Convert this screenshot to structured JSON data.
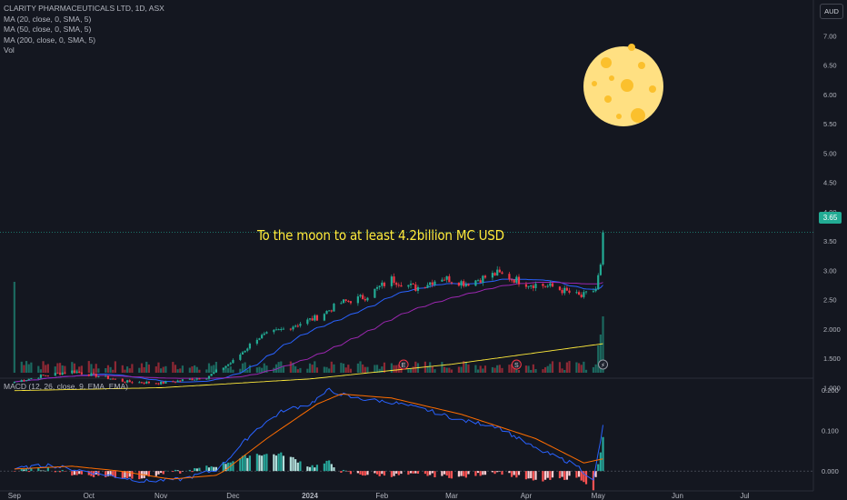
{
  "legend": {
    "symbol": "CLARITY PHARMACEUTICALS LTD, 1D, ASX",
    "ma20": "MA (20, close, 0, SMA, 5)",
    "ma50": "MA (50, close, 0, SMA, 5)",
    "ma200": "MA (200, close, 0, SMA, 5)",
    "vol": "Vol"
  },
  "currency_label": "AUD",
  "annotation": "To the moon to at least 4.2billion MC USD",
  "price_tag": "3.65",
  "macd_legend": "MACD (12, 26, close, 9, EMA, EMA)",
  "colors": {
    "up": "#22ab94",
    "down": "#f23645",
    "ma20": "#2962ff",
    "ma50": "#9c27b0",
    "ma200": "#ffeb3b",
    "macd": "#2962ff",
    "signal": "#ff6d00",
    "moon": "#ffe082"
  },
  "chart_data": [
    {
      "type": "candlestick",
      "title": "CLARITY PHARMACEUTICALS LTD, 1D, ASX",
      "x_tick_labels": [
        "Sep",
        "Oct",
        "Nov",
        "Dec",
        "2024",
        "Feb",
        "Mar",
        "Apr",
        "May",
        "Jun",
        "Jul"
      ],
      "y_tick_labels": [
        "7.00",
        "6.50",
        "6.00",
        "5.50",
        "5.00",
        "4.50",
        "4.00",
        "3.50",
        "3.00",
        "2.50",
        "2.000",
        "1.500",
        "1.000"
      ],
      "ylim": [
        0.93,
        7.1
      ],
      "last_price": 3.65,
      "close_anchors": [
        {
          "date": "2023-09-01",
          "close": 1.1
        },
        {
          "date": "2023-09-12",
          "close": 1.2
        },
        {
          "date": "2023-09-25",
          "close": 1.28
        },
        {
          "date": "2023-10-06",
          "close": 1.2
        },
        {
          "date": "2023-10-18",
          "close": 1.1
        },
        {
          "date": "2023-11-01",
          "close": 1.08
        },
        {
          "date": "2023-11-20",
          "close": 1.18
        },
        {
          "date": "2023-12-01",
          "close": 1.45
        },
        {
          "date": "2023-12-11",
          "close": 1.85
        },
        {
          "date": "2023-12-22",
          "close": 2.0
        },
        {
          "date": "2024-01-05",
          "close": 2.2
        },
        {
          "date": "2024-01-15",
          "close": 2.45
        },
        {
          "date": "2024-01-25",
          "close": 2.55
        },
        {
          "date": "2024-02-05",
          "close": 2.85
        },
        {
          "date": "2024-02-15",
          "close": 2.7
        },
        {
          "date": "2024-02-26",
          "close": 2.88
        },
        {
          "date": "2024-03-07",
          "close": 2.78
        },
        {
          "date": "2024-03-20",
          "close": 2.95
        },
        {
          "date": "2024-04-01",
          "close": 2.78
        },
        {
          "date": "2024-04-12",
          "close": 2.72
        },
        {
          "date": "2024-04-24",
          "close": 2.55
        },
        {
          "date": "2024-04-30",
          "close": 2.68
        },
        {
          "date": "2024-05-02",
          "close": 3.1
        },
        {
          "date": "2024-05-03",
          "close": 3.65
        }
      ],
      "ma200_anchors": [
        {
          "date": "2023-09-01",
          "value": 0.95
        },
        {
          "date": "2023-11-01",
          "value": 1.0
        },
        {
          "date": "2024-01-02",
          "value": 1.15
        },
        {
          "date": "2024-03-01",
          "value": 1.4
        },
        {
          "date": "2024-05-03",
          "value": 1.75
        }
      ],
      "volume": {
        "peak_date": "2023-09-01",
        "last_bars_relative": [
          0.35,
          0.55,
          1.0
        ]
      },
      "markers": [
        {
          "date": "2024-02-10",
          "label": "E"
        },
        {
          "date": "2024-03-28",
          "label": "S"
        },
        {
          "date": "2024-05-03",
          "label": "⚡"
        }
      ]
    },
    {
      "type": "macd",
      "title": "MACD (12, 26, close, 9, EMA, EMA)",
      "y_tick_labels": [
        "0.200",
        "0.100",
        "0.000"
      ],
      "ylim": [
        -0.04,
        0.22
      ],
      "macd_anchors": [
        {
          "date": "2023-09-01",
          "value": 0.005
        },
        {
          "date": "2023-09-15",
          "value": 0.015
        },
        {
          "date": "2023-10-05",
          "value": -0.005
        },
        {
          "date": "2023-10-25",
          "value": -0.025
        },
        {
          "date": "2023-11-10",
          "value": -0.02
        },
        {
          "date": "2023-11-25",
          "value": 0.005
        },
        {
          "date": "2023-12-10",
          "value": 0.1
        },
        {
          "date": "2023-12-22",
          "value": 0.15
        },
        {
          "date": "2024-01-02",
          "value": 0.165
        },
        {
          "date": "2024-01-10",
          "value": 0.2
        },
        {
          "date": "2024-01-20",
          "value": 0.18
        },
        {
          "date": "2024-02-05",
          "value": 0.17
        },
        {
          "date": "2024-02-20",
          "value": 0.15
        },
        {
          "date": "2024-03-05",
          "value": 0.125
        },
        {
          "date": "2024-03-20",
          "value": 0.11
        },
        {
          "date": "2024-04-05",
          "value": 0.055
        },
        {
          "date": "2024-04-22",
          "value": 0.015
        },
        {
          "date": "2024-04-29",
          "value": -0.025
        },
        {
          "date": "2024-05-03",
          "value": 0.11
        }
      ],
      "signal_anchors": [
        {
          "date": "2023-09-01",
          "value": 0.005
        },
        {
          "date": "2023-09-25",
          "value": 0.012
        },
        {
          "date": "2023-10-15",
          "value": 0.0
        },
        {
          "date": "2023-11-05",
          "value": -0.02
        },
        {
          "date": "2023-11-25",
          "value": -0.01
        },
        {
          "date": "2023-12-15",
          "value": 0.08
        },
        {
          "date": "2024-01-05",
          "value": 0.165
        },
        {
          "date": "2024-01-15",
          "value": 0.19
        },
        {
          "date": "2024-02-05",
          "value": 0.18
        },
        {
          "date": "2024-03-05",
          "value": 0.14
        },
        {
          "date": "2024-04-05",
          "value": 0.08
        },
        {
          "date": "2024-04-25",
          "value": 0.02
        },
        {
          "date": "2024-05-03",
          "value": 0.03
        }
      ]
    }
  ]
}
